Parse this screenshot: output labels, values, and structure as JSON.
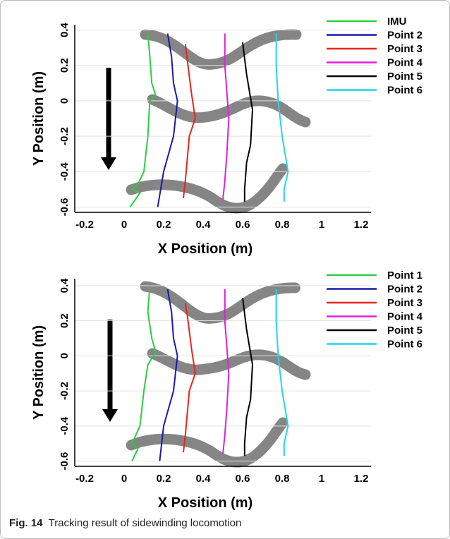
{
  "chart_data": [
    {
      "type": "line",
      "x_label": "X Position (m)",
      "y_label": "Y Position (m)",
      "xlim": [
        -0.25,
        1.25
      ],
      "ylim": [
        -0.63,
        0.43
      ],
      "xticks": [
        -0.2,
        0,
        0.2,
        0.4,
        0.6,
        0.8,
        1,
        1.2
      ],
      "yticks": [
        -0.6,
        -0.4,
        -0.2,
        0,
        0.2,
        0.4
      ],
      "grid": true,
      "legend": "upper right",
      "series": [
        {
          "name": "IMU",
          "color": "#2ecc40",
          "x": [
            0.12,
            0.13,
            0.14,
            0.16,
            0.13,
            0.12,
            0.1,
            0.07,
            0.04,
            0.08,
            0.03
          ],
          "values": [
            0.38,
            0.25,
            0.1,
            0.03,
            0.0,
            -0.2,
            -0.4,
            -0.47,
            -0.5,
            -0.52,
            -0.6
          ]
        },
        {
          "name": "Point 2",
          "color": "#1a1aa6",
          "x": [
            0.22,
            0.24,
            0.25,
            0.27,
            0.25,
            0.2,
            0.17
          ],
          "values": [
            0.38,
            0.25,
            0.1,
            0.0,
            -0.2,
            -0.4,
            -0.6
          ]
        },
        {
          "name": "Point 3",
          "color": "#e8231e",
          "x": [
            0.31,
            0.32,
            0.34,
            0.36,
            0.33,
            0.31,
            0.3
          ],
          "values": [
            0.32,
            0.23,
            0.05,
            -0.1,
            -0.2,
            -0.45,
            -0.55
          ]
        },
        {
          "name": "Point 4",
          "color": "#e020d8",
          "x": [
            0.51,
            0.51,
            0.52,
            0.53,
            0.52,
            0.51,
            0.5
          ],
          "values": [
            0.38,
            0.2,
            0.05,
            -0.1,
            -0.3,
            -0.45,
            -0.56
          ]
        },
        {
          "name": "Point 5",
          "color": "#000000",
          "x": [
            0.6,
            0.62,
            0.65,
            0.64,
            0.62,
            0.61,
            0.61
          ],
          "values": [
            0.33,
            0.15,
            -0.05,
            -0.25,
            -0.35,
            -0.5,
            -0.57
          ]
        },
        {
          "name": "Point 6",
          "color": "#20d6e8",
          "x": [
            0.77,
            0.77,
            0.78,
            0.8,
            0.83,
            0.81,
            0.81
          ],
          "values": [
            0.38,
            0.2,
            0.0,
            -0.2,
            -0.4,
            -0.5,
            -0.57
          ]
        }
      ]
    },
    {
      "type": "line",
      "x_label": "X Position (m)",
      "y_label": "Y Position (m)",
      "xlim": [
        -0.25,
        1.25
      ],
      "ylim": [
        -0.63,
        0.44
      ],
      "xticks": [
        -0.2,
        0,
        0.2,
        0.4,
        0.6,
        0.8,
        1,
        1.2
      ],
      "yticks": [
        -0.6,
        -0.4,
        -0.2,
        0,
        0.2,
        0.4
      ],
      "grid": true,
      "legend": "upper right",
      "series": [
        {
          "name": "Point 1",
          "color": "#2ecc40",
          "x": [
            0.13,
            0.12,
            0.14,
            0.16,
            0.12,
            0.1,
            0.08,
            0.04,
            0.07,
            0.04
          ],
          "values": [
            0.4,
            0.25,
            0.1,
            0.02,
            -0.05,
            -0.2,
            -0.4,
            -0.5,
            -0.53,
            -0.6
          ]
        },
        {
          "name": "Point 2",
          "color": "#1a1aa6",
          "x": [
            0.22,
            0.24,
            0.25,
            0.27,
            0.25,
            0.2,
            0.18
          ],
          "values": [
            0.38,
            0.25,
            0.1,
            0.0,
            -0.2,
            -0.4,
            -0.6
          ]
        },
        {
          "name": "Point 3",
          "color": "#e8231e",
          "x": [
            0.31,
            0.32,
            0.34,
            0.36,
            0.33,
            0.31,
            0.3
          ],
          "values": [
            0.3,
            0.23,
            0.05,
            -0.1,
            -0.2,
            -0.45,
            -0.55
          ]
        },
        {
          "name": "Point 4",
          "color": "#e020d8",
          "x": [
            0.51,
            0.51,
            0.52,
            0.53,
            0.52,
            0.51,
            0.5
          ],
          "values": [
            0.38,
            0.2,
            0.05,
            -0.1,
            -0.3,
            -0.45,
            -0.56
          ]
        },
        {
          "name": "Point 5",
          "color": "#000000",
          "x": [
            0.6,
            0.62,
            0.65,
            0.64,
            0.62,
            0.61,
            0.61
          ],
          "values": [
            0.33,
            0.15,
            -0.05,
            -0.25,
            -0.35,
            -0.5,
            -0.57
          ]
        },
        {
          "name": "Point 6",
          "color": "#20d6e8",
          "x": [
            0.77,
            0.77,
            0.78,
            0.8,
            0.83,
            0.81,
            0.81
          ],
          "values": [
            0.38,
            0.2,
            0.0,
            -0.2,
            -0.4,
            -0.5,
            -0.57
          ]
        }
      ]
    }
  ],
  "caption": {
    "label": "Fig. 14",
    "text": "Tracking result of sidewinding locomotion"
  }
}
